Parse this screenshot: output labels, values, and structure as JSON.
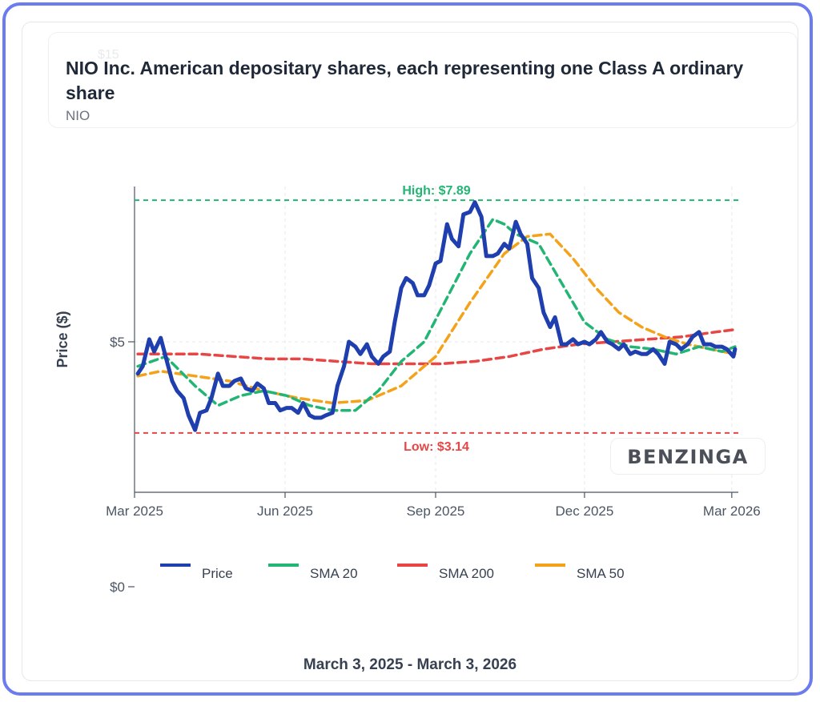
{
  "header": {
    "title": "NIO Inc. American depositary shares, each representing one Class A ordinary share",
    "symbol": "NIO",
    "ghost_tick": "$15"
  },
  "footer": {
    "date_range": "March 3, 2025 - March 3, 2026"
  },
  "watermark": "BENZINGA",
  "colors": {
    "price": "#1f3fae",
    "sma20": "#22b573",
    "sma200": "#e84545",
    "sma50": "#f5a21b",
    "high": "#22b573",
    "low": "#e84545",
    "frame": "#6b7bf0"
  },
  "chart_data": {
    "type": "line",
    "ylabel": "Price ($)",
    "ylim": [
      0,
      8.6
    ],
    "yticks": [
      {
        "value": 0,
        "label": "$0"
      },
      {
        "value": 5,
        "label": "$5"
      }
    ],
    "xticks": [
      {
        "date": "2025-03-01",
        "label": "Mar 2025"
      },
      {
        "date": "2025-06-01",
        "label": "Jun 2025"
      },
      {
        "date": "2025-09-01",
        "label": "Sep 2025"
      },
      {
        "date": "2025-12-01",
        "label": "Dec 2025"
      },
      {
        "date": "2026-03-01",
        "label": "Mar 2026"
      }
    ],
    "xlim": [
      "2025-03-01",
      "2026-03-05"
    ],
    "grid": true,
    "legend": "bottom",
    "high": {
      "value": 7.89,
      "label": "High: $7.89"
    },
    "low": {
      "value": 3.14,
      "label": "Low: $3.14"
    },
    "series": [
      {
        "name": "Price",
        "x": [
          "2025-03-03",
          "2025-03-06",
          "2025-03-10",
          "2025-03-13",
          "2025-03-17",
          "2025-03-20",
          "2025-03-24",
          "2025-03-27",
          "2025-03-31",
          "2025-04-03",
          "2025-04-07",
          "2025-04-10",
          "2025-04-14",
          "2025-04-17",
          "2025-04-21",
          "2025-04-24",
          "2025-04-28",
          "2025-05-01",
          "2025-05-05",
          "2025-05-08",
          "2025-05-12",
          "2025-05-15",
          "2025-05-19",
          "2025-05-22",
          "2025-05-26",
          "2025-05-29",
          "2025-06-02",
          "2025-06-05",
          "2025-06-09",
          "2025-06-12",
          "2025-06-16",
          "2025-06-19",
          "2025-06-23",
          "2025-06-26",
          "2025-06-30",
          "2025-07-03",
          "2025-07-07",
          "2025-07-10",
          "2025-07-14",
          "2025-07-17",
          "2025-07-21",
          "2025-07-24",
          "2025-07-28",
          "2025-07-31",
          "2025-08-04",
          "2025-08-07",
          "2025-08-11",
          "2025-08-14",
          "2025-08-18",
          "2025-08-21",
          "2025-08-25",
          "2025-08-28",
          "2025-09-01",
          "2025-09-04",
          "2025-09-08",
          "2025-09-11",
          "2025-09-15",
          "2025-09-18",
          "2025-09-22",
          "2025-09-25",
          "2025-09-29",
          "2025-10-02",
          "2025-10-06",
          "2025-10-09",
          "2025-10-13",
          "2025-10-16",
          "2025-10-20",
          "2025-10-23",
          "2025-10-27",
          "2025-10-30",
          "2025-11-03",
          "2025-11-06",
          "2025-11-10",
          "2025-11-13",
          "2025-11-17",
          "2025-11-20",
          "2025-11-24",
          "2025-11-27",
          "2025-12-01",
          "2025-12-04",
          "2025-12-08",
          "2025-12-11",
          "2025-12-15",
          "2025-12-18",
          "2025-12-22",
          "2025-12-25",
          "2025-12-29",
          "2026-01-01",
          "2026-01-05",
          "2026-01-08",
          "2026-01-12",
          "2026-01-15",
          "2026-01-19",
          "2026-01-22",
          "2026-01-26",
          "2026-01-29",
          "2026-02-02",
          "2026-02-05",
          "2026-02-09",
          "2026-02-12",
          "2026-02-16",
          "2026-02-19",
          "2026-02-23",
          "2026-02-26",
          "2026-03-02",
          "2026-03-03"
        ],
        "values": [
          4.35,
          4.5,
          5.05,
          4.8,
          5.08,
          4.7,
          4.2,
          4.0,
          3.85,
          3.5,
          3.2,
          3.55,
          3.6,
          3.85,
          4.35,
          4.1,
          4.1,
          4.2,
          4.25,
          4.05,
          4.0,
          4.15,
          4.05,
          3.75,
          3.75,
          3.6,
          3.65,
          3.65,
          3.55,
          3.75,
          3.5,
          3.45,
          3.45,
          3.5,
          3.55,
          4.1,
          4.5,
          5.0,
          4.9,
          4.75,
          4.95,
          4.7,
          4.55,
          4.7,
          4.8,
          5.4,
          6.1,
          6.3,
          6.2,
          5.95,
          5.95,
          6.15,
          6.6,
          6.65,
          7.4,
          7.1,
          6.95,
          7.6,
          7.65,
          7.85,
          7.55,
          6.75,
          6.75,
          6.8,
          7.0,
          6.9,
          7.45,
          7.2,
          7.0,
          6.3,
          6.1,
          5.6,
          5.3,
          5.5,
          4.95,
          4.95,
          5.05,
          4.95,
          5.0,
          4.95,
          5.05,
          5.2,
          5.0,
          4.95,
          4.85,
          4.95,
          4.75,
          4.8,
          4.75,
          4.75,
          4.85,
          4.75,
          4.55,
          5.0,
          4.95,
          4.85,
          4.95,
          5.1,
          5.2,
          4.95,
          4.95,
          4.9,
          4.9,
          4.85,
          4.7,
          4.85
        ]
      },
      {
        "name": "SMA 20",
        "x": [
          "2025-03-03",
          "2025-03-20",
          "2025-04-07",
          "2025-04-21",
          "2025-05-05",
          "2025-05-19",
          "2025-06-02",
          "2025-06-16",
          "2025-06-30",
          "2025-07-14",
          "2025-07-28",
          "2025-08-11",
          "2025-08-25",
          "2025-09-08",
          "2025-09-22",
          "2025-10-06",
          "2025-10-13",
          "2025-10-20",
          "2025-11-03",
          "2025-11-10",
          "2025-11-24",
          "2025-12-01",
          "2025-12-15",
          "2025-12-29",
          "2026-01-12",
          "2026-01-26",
          "2026-02-09",
          "2026-02-23",
          "2026-03-03"
        ],
        "values": [
          4.5,
          4.7,
          4.1,
          3.7,
          3.9,
          4.0,
          3.9,
          3.7,
          3.6,
          3.6,
          4.0,
          4.6,
          5.0,
          5.9,
          6.8,
          7.5,
          7.4,
          7.2,
          7.0,
          6.6,
          5.8,
          5.4,
          5.05,
          4.9,
          4.85,
          4.75,
          4.9,
          4.8,
          4.9
        ]
      },
      {
        "name": "SMA 200",
        "x": [
          "2025-03-03",
          "2025-03-20",
          "2025-04-10",
          "2025-05-01",
          "2025-05-22",
          "2025-06-12",
          "2025-07-03",
          "2025-07-24",
          "2025-08-14",
          "2025-09-04",
          "2025-09-25",
          "2025-10-16",
          "2025-11-06",
          "2025-11-27",
          "2025-12-18",
          "2026-01-08",
          "2026-01-29",
          "2026-02-19",
          "2026-03-03"
        ],
        "values": [
          4.75,
          4.75,
          4.75,
          4.7,
          4.65,
          4.65,
          4.6,
          4.55,
          4.55,
          4.55,
          4.6,
          4.7,
          4.85,
          4.95,
          5.0,
          5.05,
          5.1,
          5.2,
          5.25
        ]
      },
      {
        "name": "SMA 50",
        "x": [
          "2025-03-03",
          "2025-03-17",
          "2025-04-07",
          "2025-04-28",
          "2025-05-19",
          "2025-06-09",
          "2025-06-30",
          "2025-07-21",
          "2025-08-11",
          "2025-09-01",
          "2025-09-22",
          "2025-10-13",
          "2025-10-27",
          "2025-11-10",
          "2025-11-24",
          "2025-12-08",
          "2025-12-22",
          "2026-01-05",
          "2026-01-19",
          "2026-02-02",
          "2026-02-16",
          "2026-03-03"
        ],
        "values": [
          4.3,
          4.4,
          4.3,
          4.2,
          4.0,
          3.85,
          3.75,
          3.8,
          4.1,
          4.7,
          5.8,
          6.8,
          7.15,
          7.2,
          6.7,
          6.1,
          5.6,
          5.3,
          5.1,
          4.95,
          4.85,
          4.75
        ]
      }
    ]
  }
}
